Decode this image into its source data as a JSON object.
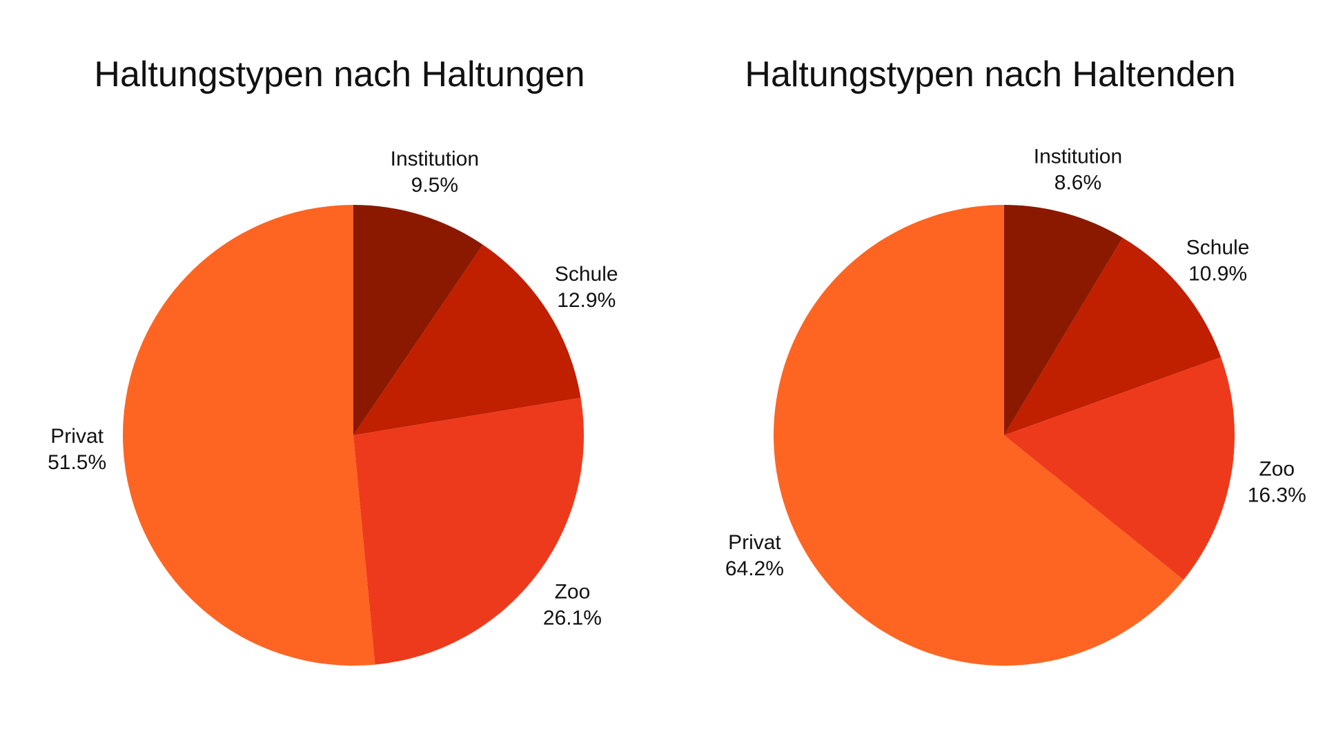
{
  "chart_data": [
    {
      "type": "pie",
      "title": "Haltungstypen nach Haltungen",
      "categories": [
        "Institution",
        "Schule",
        "Zoo",
        "Privat"
      ],
      "values": [
        9.5,
        12.9,
        26.1,
        51.5
      ],
      "value_labels": [
        "9.5%",
        "12.9%",
        "26.1%",
        "51.5%"
      ],
      "colors": [
        "#8b1900",
        "#c01f00",
        "#ee3a1c",
        "#ff6522"
      ]
    },
    {
      "type": "pie",
      "title": "Haltungstypen nach Haltenden",
      "categories": [
        "Institution",
        "Schule",
        "Zoo",
        "Privat"
      ],
      "values": [
        8.6,
        10.9,
        16.3,
        64.2
      ],
      "value_labels": [
        "8.6%",
        "10.9%",
        "16.3%",
        "64.2%"
      ],
      "colors": [
        "#8b1900",
        "#c01f00",
        "#ee3a1c",
        "#ff6522"
      ]
    }
  ]
}
